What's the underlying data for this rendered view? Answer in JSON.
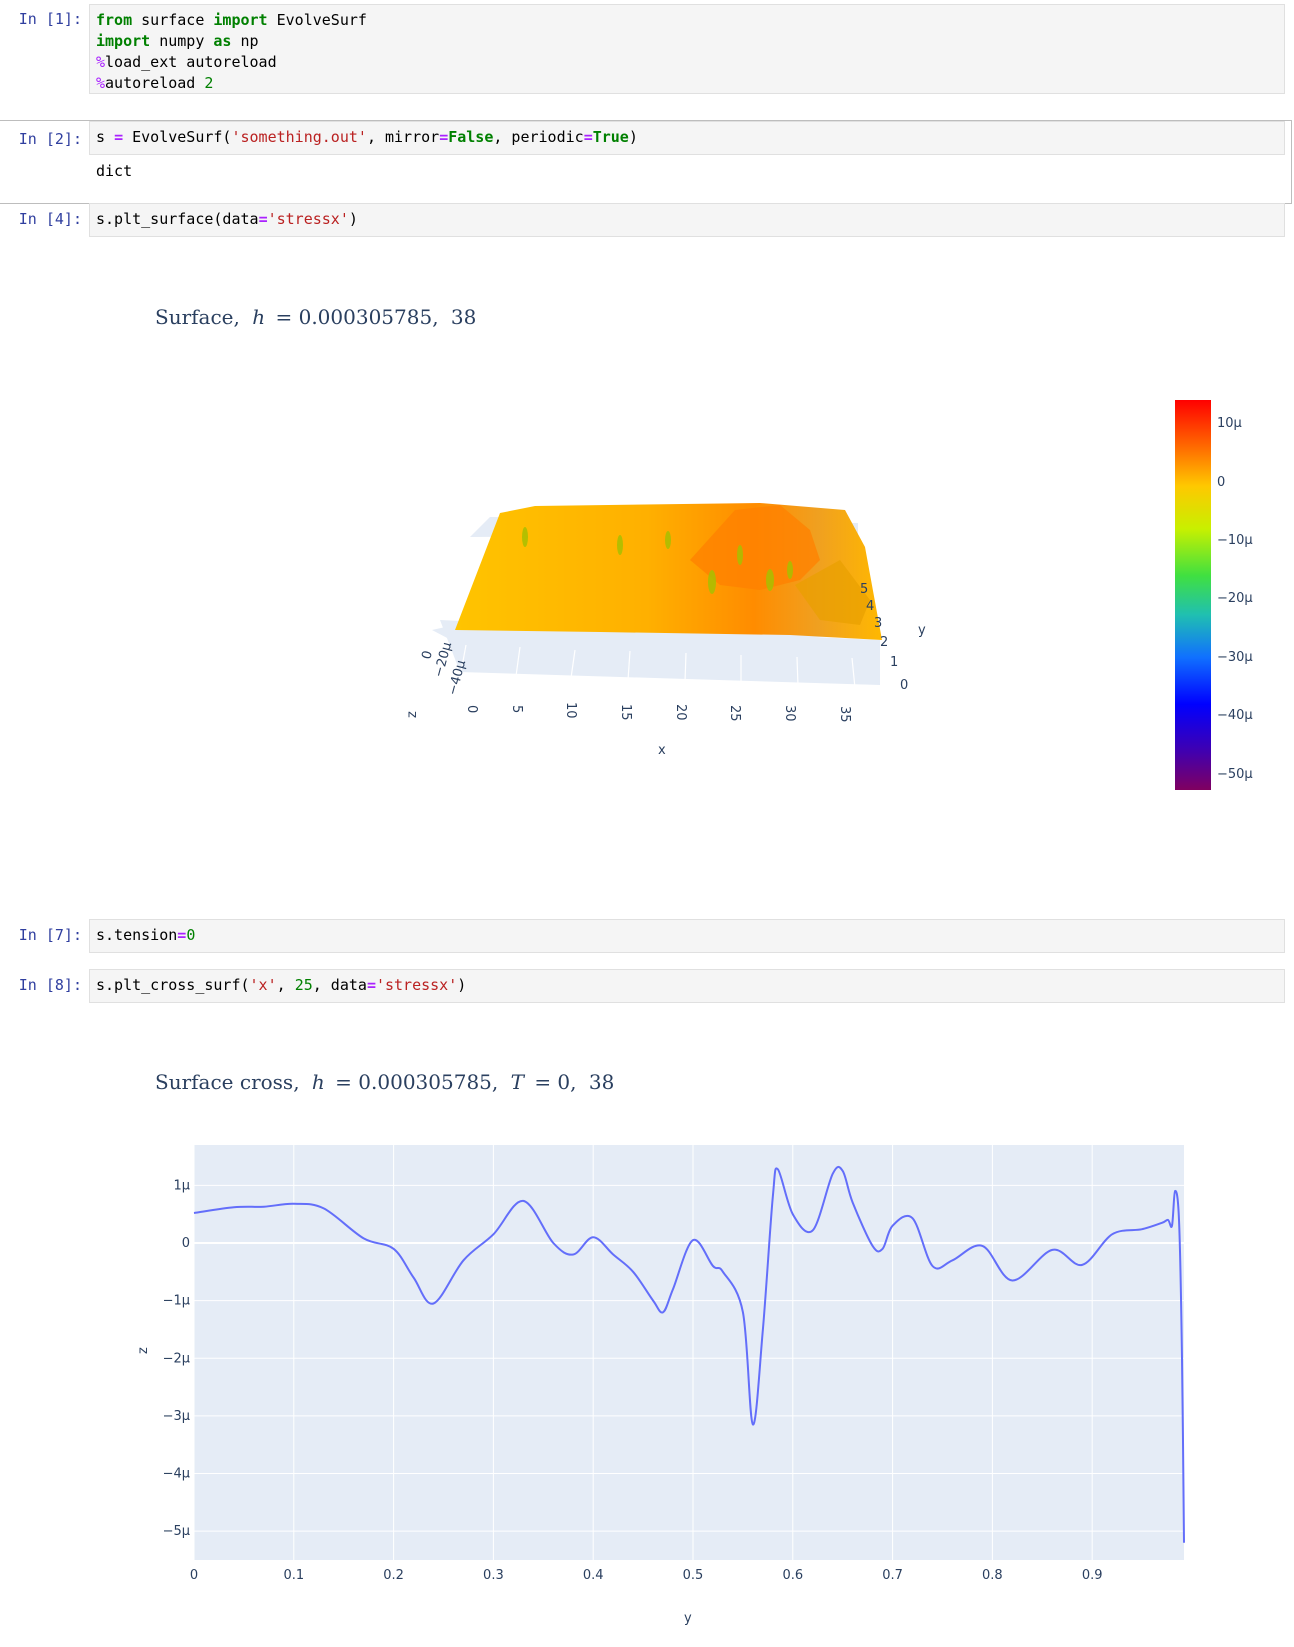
{
  "cells": [
    {
      "prompt": "In [1]:",
      "lines": [
        "from surface import EvolveSurf",
        "import numpy as np",
        "%load_ext autoreload",
        "%autoreload 2"
      ]
    },
    {
      "prompt": "In [2]:",
      "code": "s = EvolveSurf('something.out', mirror=False, periodic=True)",
      "output": "dict"
    },
    {
      "prompt": "In [4]:",
      "code": "s.plt_surface(data='stressx')"
    },
    {
      "prompt": "In [7]:",
      "code": "s.tension=0"
    },
    {
      "prompt": "In [8]:",
      "code": "s.plt_cross_surf('x', 25, data='stressx')"
    }
  ],
  "surface_plot": {
    "title_prefix": "Surface,",
    "h_label": "h",
    "h_value": "= 0.000305785,",
    "index": "38",
    "x_ticks": [
      "0",
      "5",
      "10",
      "15",
      "20",
      "25",
      "30",
      "35"
    ],
    "x_label": "x",
    "y_ticks": [
      "0",
      "1",
      "2",
      "3",
      "4",
      "5"
    ],
    "y_label": "y",
    "z_ticks": [
      "0",
      "−20μ",
      "−40μ"
    ],
    "z_label": "z",
    "colorbar_ticks": [
      "10μ",
      "0",
      "−10μ",
      "−20μ",
      "−30μ",
      "−40μ",
      "−50μ"
    ],
    "colorscale": [
      "#ff0000",
      "#ff8000",
      "#ffc800",
      "#c8f000",
      "#40e040",
      "#20c0a0",
      "#1060ff",
      "#0000ff",
      "#4000c0",
      "#800060"
    ]
  },
  "chart_data": {
    "type": "line",
    "title": "Surface cross, h = 0.000305785, T = 0, 38",
    "title_prefix": "Surface cross,",
    "h_label": "h",
    "h_value": "= 0.000305785,",
    "t_label": "T",
    "t_value": "= 0,",
    "index": "38",
    "xlabel": "y",
    "ylabel": "z",
    "xlim": [
      0,
      0.992
    ],
    "ylim": [
      -5.5,
      1.7
    ],
    "x_ticks": [
      0,
      0.1,
      0.2,
      0.3,
      0.4,
      0.5,
      0.6,
      0.7,
      0.8,
      0.9
    ],
    "x_tick_labels": [
      "0",
      "0.1",
      "0.2",
      "0.3",
      "0.4",
      "0.5",
      "0.6",
      "0.7",
      "0.8",
      "0.9"
    ],
    "y_ticks": [
      1,
      0,
      -1,
      -2,
      -3,
      -4,
      -5
    ],
    "y_tick_labels": [
      "1μ",
      "0",
      "−1μ",
      "−2μ",
      "−3μ",
      "−4μ",
      "−5μ"
    ],
    "color": "#636efa",
    "series": [
      {
        "x": [
          0,
          0.04,
          0.07,
          0.1,
          0.13,
          0.17,
          0.2,
          0.22,
          0.24,
          0.27,
          0.3,
          0.33,
          0.36,
          0.38,
          0.4,
          0.42,
          0.44,
          0.46,
          0.47,
          0.48,
          0.5,
          0.52,
          0.53,
          0.55,
          0.56,
          0.57,
          0.58,
          0.585,
          0.6,
          0.62,
          0.64,
          0.65,
          0.66,
          0.68,
          0.69,
          0.7,
          0.72,
          0.74,
          0.76,
          0.79,
          0.82,
          0.86,
          0.89,
          0.92,
          0.95,
          0.97,
          0.976,
          0.98,
          0.983,
          0.987,
          0.99,
          0.992
        ],
        "y": [
          0.52,
          0.62,
          0.63,
          0.68,
          0.6,
          0.08,
          -0.1,
          -0.6,
          -1.05,
          -0.3,
          0.15,
          0.73,
          0.0,
          -0.2,
          0.1,
          -0.2,
          -0.5,
          -1.0,
          -1.2,
          -0.8,
          0.05,
          -0.4,
          -0.5,
          -1.2,
          -3.15,
          -1.5,
          0.8,
          1.28,
          0.5,
          0.22,
          1.2,
          1.25,
          0.7,
          -0.05,
          -0.1,
          0.3,
          0.43,
          -0.4,
          -0.3,
          -0.05,
          -0.65,
          -0.12,
          -0.38,
          0.15,
          0.24,
          0.35,
          0.4,
          0.3,
          0.9,
          0.4,
          -2.0,
          -5.2
        ]
      }
    ]
  }
}
